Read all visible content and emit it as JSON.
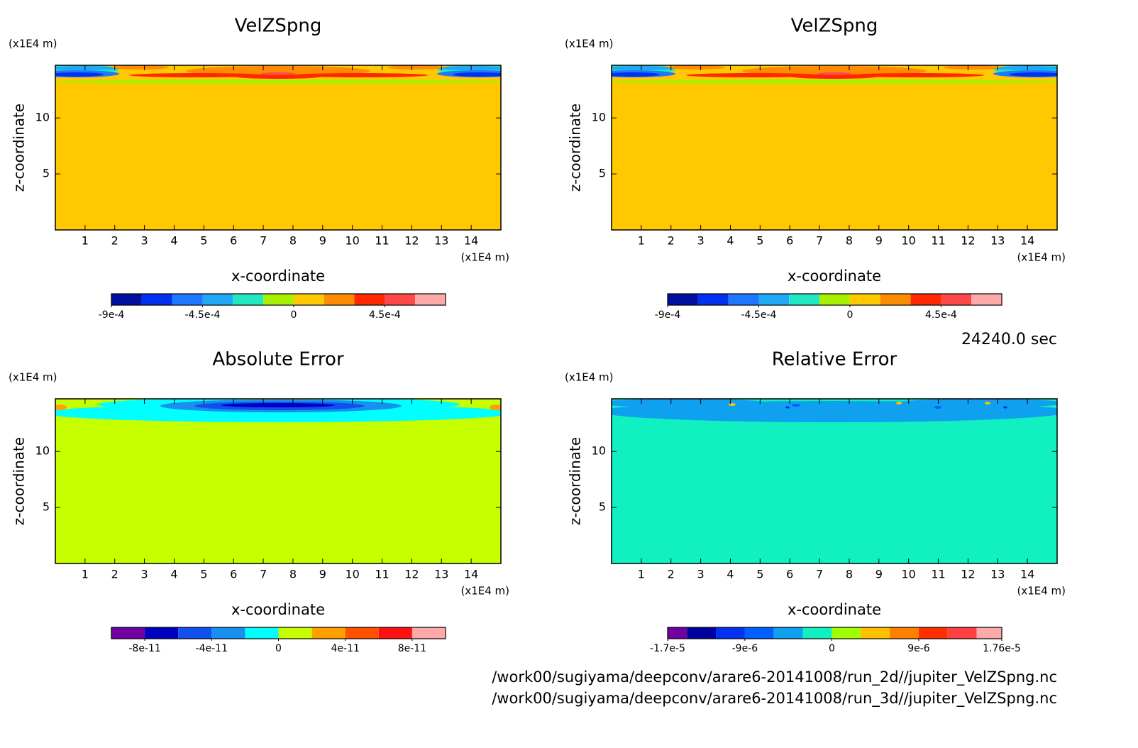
{
  "chart_data": [
    {
      "type": "contour",
      "title": "VelZSpng",
      "xlabel": "x-coordinate",
      "ylabel": "z-coordinate",
      "xunit": "(x1E4 m)",
      "yunit": "(x1E4 m)",
      "xlim": [
        0,
        15
      ],
      "ylim": [
        0,
        14.7
      ],
      "xticks": [
        1,
        2,
        3,
        4,
        5,
        6,
        7,
        8,
        9,
        10,
        11,
        12,
        13,
        14
      ],
      "yticks": [
        5,
        10
      ],
      "colorbar": {
        "levels": [
          -0.0009,
          -0.00075,
          -0.0006,
          -0.00045,
          -0.0003,
          -0.00015,
          0,
          0.00015,
          0.0003,
          0.00045,
          0.0006,
          0.00075
        ],
        "colors": [
          "#0010a0",
          "#0030f0",
          "#1e78ff",
          "#20a8f8",
          "#20e8c0",
          "#a8f000",
          "#ffc800",
          "#ff8c00",
          "#ff2800",
          "#ff4848",
          "#ffaaaa"
        ],
        "ticks": [
          {
            "value": -0.0009,
            "label": "-9e-4"
          },
          {
            "value": -0.00045,
            "label": "-4.5e-4"
          },
          0,
          {
            "value": 0.00045,
            "label": "4.5e-4"
          }
        ]
      }
    },
    {
      "type": "contour",
      "title": "VelZSpng",
      "xlabel": "x-coordinate",
      "ylabel": "z-coordinate",
      "xunit": "(x1E4 m)",
      "yunit": "(x1E4 m)",
      "xlim": [
        0,
        15
      ],
      "ylim": [
        0,
        14.7
      ],
      "xticks": [
        1,
        2,
        3,
        4,
        5,
        6,
        7,
        8,
        9,
        10,
        11,
        12,
        13,
        14
      ],
      "yticks": [
        5,
        10
      ],
      "colorbar": {
        "levels": [
          -0.0009,
          -0.00075,
          -0.0006,
          -0.00045,
          -0.0003,
          -0.00015,
          0,
          0.00015,
          0.0003,
          0.00045,
          0.0006,
          0.00075
        ],
        "colors": [
          "#0010a0",
          "#0030f0",
          "#1e78ff",
          "#20a8f8",
          "#20e8c0",
          "#a8f000",
          "#ffc800",
          "#ff8c00",
          "#ff2800",
          "#ff4848",
          "#ffaaaa"
        ],
        "ticks": [
          {
            "value": -0.0009,
            "label": "-9e-4"
          },
          {
            "value": -0.00045,
            "label": "-4.5e-4"
          },
          0,
          {
            "value": 0.00045,
            "label": "4.5e-4"
          }
        ]
      }
    },
    {
      "type": "contour",
      "title": "Absolute Error",
      "xlabel": "x-coordinate",
      "ylabel": "z-coordinate",
      "xunit": "(x1E4 m)",
      "yunit": "(x1E4 m)",
      "xlim": [
        0,
        15
      ],
      "ylim": [
        0,
        14.7
      ],
      "xticks": [
        1,
        2,
        3,
        4,
        5,
        6,
        7,
        8,
        9,
        10,
        11,
        12,
        13,
        14
      ],
      "yticks": [
        5,
        10
      ],
      "colorbar": {
        "levels": [
          -1e-10,
          -8e-11,
          -6e-11,
          -4e-11,
          -2e-11,
          0,
          2e-11,
          4e-11,
          6e-11,
          8e-11,
          1e-10
        ],
        "colors": [
          "#7000a0",
          "#0000c0",
          "#1050f0",
          "#1890f0",
          "#00ffff",
          "#c8ff00",
          "#ffa000",
          "#ff5000",
          "#ff1010",
          "#ffa8a8"
        ],
        "ticks": [
          {
            "value": -8e-11,
            "label": "-8e-11"
          },
          {
            "value": -4e-11,
            "label": "-4e-11"
          },
          0,
          {
            "value": 4e-11,
            "label": "4e-11"
          },
          {
            "value": 8e-11,
            "label": "8e-11"
          }
        ]
      }
    },
    {
      "type": "contour",
      "title": "Relative Error",
      "xlabel": "x-coordinate",
      "ylabel": "z-coordinate",
      "xunit": "(x1E4 m)",
      "yunit": "(x1E4 m)",
      "xlim": [
        0,
        15
      ],
      "ylim": [
        0,
        14.7
      ],
      "xticks": [
        1,
        2,
        3,
        4,
        5,
        6,
        7,
        8,
        9,
        10,
        11,
        12,
        13,
        14
      ],
      "yticks": [
        5,
        10
      ],
      "colorbar": {
        "levels": [
          -1.7e-05,
          -1.5e-05,
          -1.2e-05,
          -9e-06,
          -6e-06,
          -3e-06,
          0,
          3e-06,
          6e-06,
          9e-06,
          1.2e-05,
          1.5e-05,
          1.76e-05
        ],
        "colors": [
          "#7000a0",
          "#0000a0",
          "#0030f0",
          "#0060ff",
          "#10a0f0",
          "#10f0c0",
          "#a0ff00",
          "#ffc000",
          "#ff8000",
          "#ff3000",
          "#ff4040",
          "#ffaaaa"
        ],
        "ticks": [
          {
            "value": -1.7e-05,
            "label": "-1.7e-5"
          },
          {
            "value": -9e-06,
            "label": "-9e-6"
          },
          0,
          {
            "value": 9e-06,
            "label": "9e-6"
          },
          {
            "value": 1.76e-05,
            "label": "1.76e-5"
          }
        ]
      }
    }
  ],
  "time": "24240.0 sec",
  "files": [
    "/work00/sugiyama/deepconv/arare6-20141008/run_2d//jupiter_VelZSpng.nc",
    "/work00/sugiyama/deepconv/arare6-20141008/run_3d//jupiter_VelZSpng.nc"
  ]
}
